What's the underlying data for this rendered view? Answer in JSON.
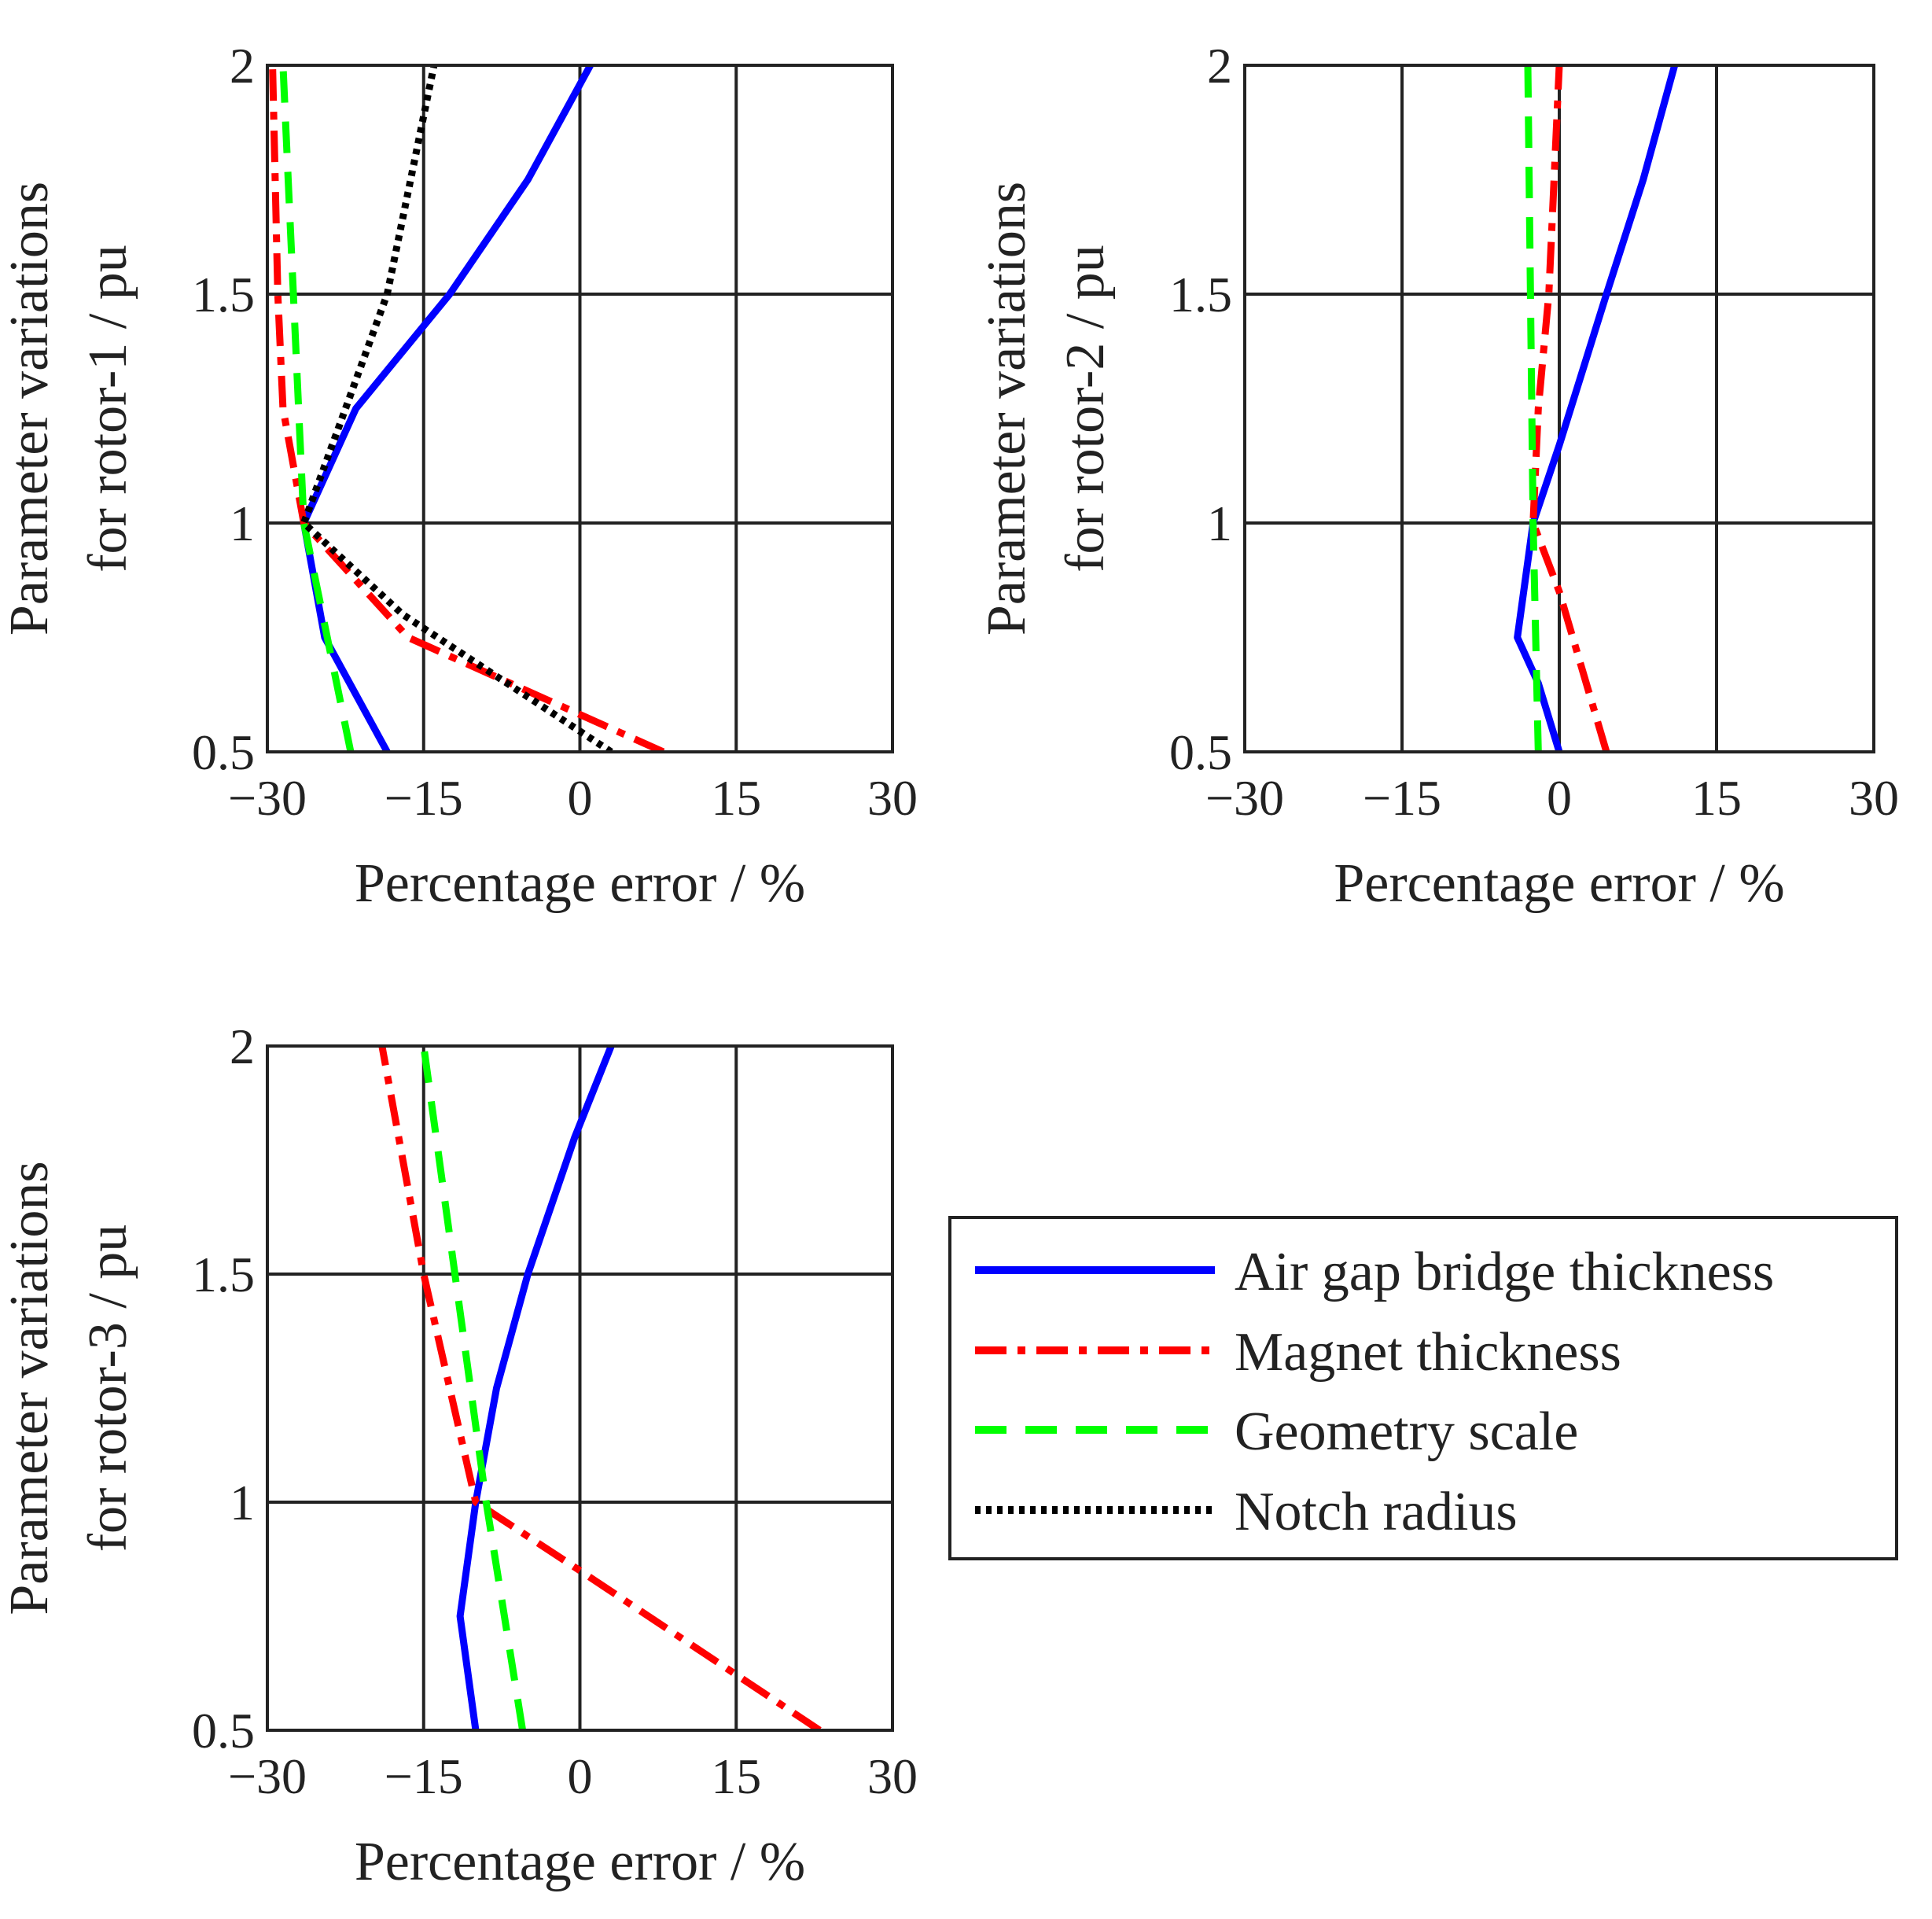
{
  "figure": {
    "legend": {
      "entries": [
        {
          "label": "Air gap bridge thickness",
          "color": "#0000ff",
          "style": "solid"
        },
        {
          "label": "Magnet thickness",
          "color": "#ff0000",
          "style": "dashdot"
        },
        {
          "label": "Geometry scale",
          "color": "#00ff00",
          "style": "dashed"
        },
        {
          "label": "Notch radius",
          "color": "#000000",
          "style": "dotted"
        }
      ]
    }
  },
  "chart_data": [
    {
      "type": "line",
      "xlabel": "Percentage error / %",
      "ylabel": [
        "Parameter variations",
        "for rotor-1 / pu"
      ],
      "xlim": [
        -30,
        30
      ],
      "ylim": [
        0.5,
        2
      ],
      "xticks": [
        "−30",
        "−15",
        "0",
        "15",
        "30"
      ],
      "yticks": [
        "0.5",
        "1",
        "1.5",
        "2"
      ],
      "grid": true,
      "series": [
        {
          "name": "Air gap bridge thickness",
          "x": [
            -18.5,
            -24.5,
            -26.5,
            -21.5,
            -12.5,
            -5,
            1
          ],
          "y": [
            0.5,
            0.75,
            1.0,
            1.25,
            1.5,
            1.75,
            2.0
          ]
        },
        {
          "name": "Magnet thickness",
          "x": [
            8,
            -16.5,
            -26.5,
            -28.5,
            -29,
            -29.5
          ],
          "y": [
            0.5,
            0.75,
            1.0,
            1.25,
            1.5,
            2.0
          ]
        },
        {
          "name": "Geometry scale",
          "x": [
            -22,
            -26.5,
            -27.5,
            -28.5
          ],
          "y": [
            0.5,
            1.0,
            1.5,
            2.0
          ]
        },
        {
          "name": "Notch radius",
          "x": [
            3,
            -17,
            -26.5,
            -18.5,
            -14
          ],
          "y": [
            0.5,
            0.8,
            1.0,
            1.5,
            2.0
          ]
        }
      ]
    },
    {
      "type": "line",
      "xlabel": "Percentage error / %",
      "ylabel": [
        "Parameter variations",
        "for rotor-2 / pu"
      ],
      "xlim": [
        -30,
        30
      ],
      "ylim": [
        0.5,
        2
      ],
      "xticks": [
        "−30",
        "−15",
        "0",
        "15",
        "30"
      ],
      "yticks": [
        "0.5",
        "1",
        "1.5",
        "2"
      ],
      "grid": true,
      "series": [
        {
          "name": "Air gap bridge thickness",
          "x": [
            0,
            -2,
            -4,
            -2.5,
            0,
            4.5,
            8,
            11
          ],
          "y": [
            0.5,
            0.65,
            0.75,
            1.0,
            1.17,
            1.5,
            1.75,
            2.0
          ]
        },
        {
          "name": "Magnet thickness",
          "x": [
            4.5,
            0,
            -2.5,
            -2,
            -1,
            0
          ],
          "y": [
            0.5,
            0.85,
            1.0,
            1.25,
            1.5,
            2.0
          ]
        },
        {
          "name": "Geometry scale",
          "x": [
            -2,
            -2.5,
            -3
          ],
          "y": [
            0.5,
            1.0,
            2.0
          ]
        }
      ]
    },
    {
      "type": "line",
      "xlabel": "Percentage error / %",
      "ylabel": [
        "Parameter variations",
        "for rotor-3 / pu"
      ],
      "xlim": [
        -30,
        30
      ],
      "ylim": [
        0.5,
        2
      ],
      "xticks": [
        "−30",
        "−15",
        "0",
        "15",
        "30"
      ],
      "yticks": [
        "0.5",
        "1",
        "1.5",
        "2"
      ],
      "grid": true,
      "series": [
        {
          "name": "Air gap bridge thickness",
          "x": [
            -10,
            -11.5,
            -10,
            -8,
            -5,
            -0.5,
            3
          ],
          "y": [
            0.5,
            0.75,
            1.0,
            1.25,
            1.5,
            1.8,
            2.0
          ]
        },
        {
          "name": "Magnet thickness",
          "x": [
            23,
            0,
            -10,
            -15,
            -19
          ],
          "y": [
            0.5,
            0.85,
            1.0,
            1.5,
            2.0
          ]
        },
        {
          "name": "Geometry scale",
          "x": [
            -5.5,
            -9,
            -15
          ],
          "y": [
            0.5,
            1.0,
            2.0
          ]
        }
      ]
    }
  ]
}
